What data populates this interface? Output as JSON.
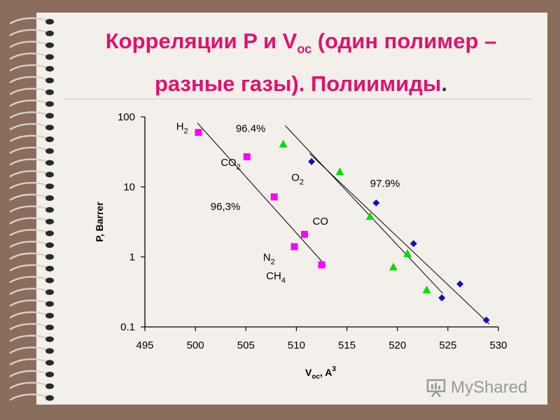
{
  "slide": {
    "title_line1_pre": "Корреляции P и V",
    "title_line1_sub": "ос",
    "title_line1_post": " (один полимер –",
    "title_line2": "разные газы). Полиимиды",
    "title_line2_dot": "."
  },
  "watermark": {
    "text": "MyShared",
    "icon": "presentation-board-icon"
  },
  "colors": {
    "title": "#e0126e",
    "magenta": "#ff00ff",
    "green": "#00dd00",
    "blue": "#1010c0",
    "background": "#8a6d5a",
    "slide": "#f3efea"
  },
  "chart_data": {
    "type": "scatter",
    "xlabel_main": "V",
    "xlabel_sub": "oc",
    "xlabel_tail": ", A",
    "xlabel_sup": "3",
    "ylabel": "P, Barrer",
    "xlim": [
      495,
      530
    ],
    "ylim": [
      0.1,
      100
    ],
    "y_scale": "log",
    "x_ticks": [
      "495",
      "500",
      "505",
      "510",
      "515",
      "520",
      "525",
      "530"
    ],
    "y_ticks": [
      "0.1",
      "1",
      "10",
      "100"
    ],
    "series": [
      {
        "color": "#ff00ff",
        "marker": "square",
        "points": [
          [
            500.3,
            60
          ],
          [
            505.1,
            27
          ],
          [
            507.8,
            7.2
          ],
          [
            510.8,
            2.1
          ],
          [
            509.8,
            1.4
          ],
          [
            512.5,
            0.77
          ]
        ]
      },
      {
        "color": "#00dd00",
        "marker": "triangle",
        "points": [
          [
            508.7,
            41
          ],
          [
            514.3,
            16.5
          ],
          [
            517.3,
            3.8
          ],
          [
            519.6,
            0.72
          ],
          [
            521.0,
            1.12
          ],
          [
            522.9,
            0.34
          ]
        ]
      },
      {
        "color": "#1010c0",
        "marker": "diamond",
        "points": [
          [
            511.5,
            23
          ],
          [
            517.9,
            5.9
          ],
          [
            521.6,
            1.55
          ],
          [
            524.4,
            0.26
          ],
          [
            526.2,
            0.41
          ],
          [
            528.8,
            0.125
          ]
        ]
      }
    ],
    "fit_lines": [
      {
        "from": [
          500.2,
          82
        ],
        "to": [
          512.9,
          0.75
        ]
      },
      {
        "from": [
          508.9,
          75
        ],
        "to": [
          524.5,
          0.3
        ]
      },
      {
        "from": [
          511.3,
          30
        ],
        "to": [
          529.1,
          0.11
        ]
      }
    ],
    "annotations": [
      {
        "text": "H",
        "sub": "2",
        "x": 498.1,
        "y": 65
      },
      {
        "text": "CO",
        "sub": "2",
        "x": 502.5,
        "y": 20
      },
      {
        "text": "O",
        "sub": "2",
        "x": 509.5,
        "y": 12.2
      },
      {
        "text": "96,3%",
        "x": 501.5,
        "y": 4.7
      },
      {
        "text": "CO",
        "x": 511.6,
        "y": 2.9
      },
      {
        "text": "N",
        "sub": "2",
        "x": 506.7,
        "y": 0.88
      },
      {
        "text": "CH",
        "sub": "4",
        "x": 507.0,
        "y": 0.48
      },
      {
        "text": "96.4%",
        "x": 504.0,
        "y": 61
      },
      {
        "text": "97.9%",
        "x": 517.3,
        "y": 10
      }
    ]
  }
}
